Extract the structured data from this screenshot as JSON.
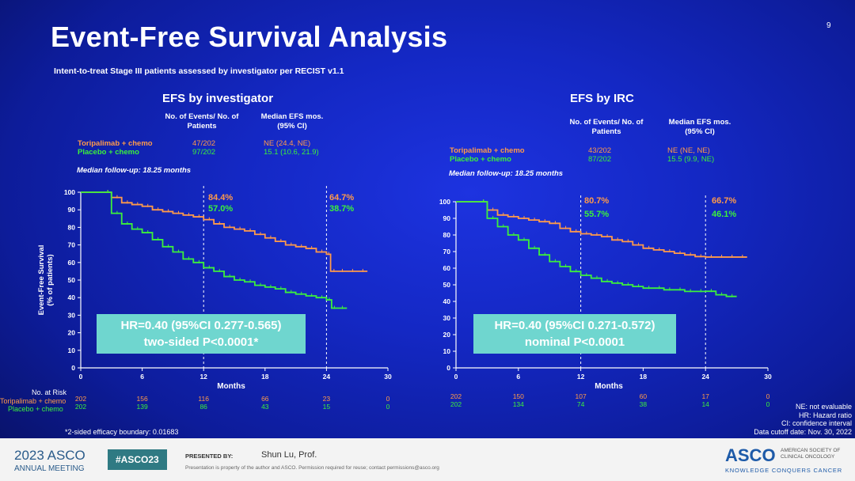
{
  "slide": {
    "title": "Event-Free Survival Analysis",
    "page_number": "9",
    "subtitle": "Intent-to-treat Stage III patients assessed by investigator per RECIST v1.1",
    "footnote_left": "*2-sided efficacy boundary: 0.01683",
    "notes_right": [
      "NE: not evaluable",
      "HR: Hazard ratio",
      "CI: confidence interval",
      "Data cutoff date: Nov. 30, 2022"
    ],
    "colors": {
      "background": "#1428c4",
      "toripalimab": "#ff9a4a",
      "placebo": "#3cf03c",
      "hr_box": "#6fd6cf"
    }
  },
  "footer": {
    "year_meeting": "2023 ASCO",
    "annual_meeting": "ANNUAL MEETING",
    "hashtag": "#ASCO23",
    "presented_by_label": "PRESENTED BY:",
    "presenter": "Shun Lu, Prof.",
    "disclaimer": "Presentation is property of the author and ASCO. Permission required for reuse; contact permissions@asco.org",
    "brand": "ASCO",
    "brand_sub1": "AMERICAN SOCIETY OF",
    "brand_sub2": "CLINICAL ONCOLOGY",
    "tagline": "KNOWLEDGE CONQUERS CANCER"
  },
  "risk_table_label": "No. at Risk",
  "chart_data": [
    {
      "type": "line",
      "title": "EFS by investigator",
      "xlabel": "Months",
      "ylabel_line1": "Event-Free Survival",
      "ylabel_line2": "(% of patients)",
      "xlim": [
        0,
        30
      ],
      "ylim": [
        0,
        100
      ],
      "xticks": [
        0,
        6,
        12,
        18,
        24,
        30
      ],
      "yticks": [
        0,
        10,
        20,
        30,
        40,
        50,
        60,
        70,
        80,
        90,
        100
      ],
      "reference_lines_x": [
        12,
        24
      ],
      "table_headers": {
        "events": "No. of Events/ No. of Patients",
        "median": "Median EFS mos. (95% CI)"
      },
      "series": [
        {
          "name": "Toripalimab + chemo",
          "color": "#ff9a4a",
          "events": "47/202",
          "median": "NE (24.4, NE)",
          "x": [
            0,
            2.2,
            3,
            4,
            5,
            6,
            7,
            8,
            9,
            10,
            11,
            12,
            13,
            14,
            15,
            16,
            17,
            18,
            19,
            20,
            21,
            22,
            23,
            24,
            24.4,
            25,
            26,
            27,
            28
          ],
          "y": [
            100,
            100,
            97,
            94,
            93,
            92,
            90,
            89,
            88,
            87,
            86,
            84.4,
            82,
            80,
            79,
            78,
            76,
            74,
            72,
            70,
            69,
            68,
            66,
            64.7,
            55,
            55,
            55,
            55,
            55
          ],
          "at_risk": [
            "202",
            "156",
            "116",
            "66",
            "23",
            "0"
          ],
          "landmarks": [
            "84.4%",
            "64.7%"
          ]
        },
        {
          "name": "Placebo + chemo",
          "color": "#3cf03c",
          "events": "97/202",
          "median": "15.1 (10.6, 21.9)",
          "x": [
            0,
            2.2,
            3,
            4,
            5,
            6,
            7,
            8,
            9,
            10,
            11,
            12,
            13,
            14,
            15,
            16,
            17,
            18,
            19,
            20,
            21,
            22,
            23,
            24,
            24.5,
            25,
            26
          ],
          "y": [
            100,
            100,
            88,
            82,
            79,
            77,
            73,
            69,
            66,
            62,
            60,
            57,
            55,
            52,
            50,
            49,
            47,
            46,
            45,
            43,
            42,
            41,
            40,
            38.7,
            34,
            34,
            34
          ],
          "at_risk": [
            "202",
            "139",
            "86",
            "43",
            "15",
            "0"
          ],
          "landmarks": [
            "57.0%",
            "38.7%"
          ]
        }
      ],
      "median_followup": "Median follow-up: 18.25 months",
      "hr_line1": "HR=0.40 (95%CI 0.277-0.565)",
      "hr_line2": "two-sided P<0.0001*"
    },
    {
      "type": "line",
      "title": "EFS by IRC",
      "xlabel": "Months",
      "xlim": [
        0,
        30
      ],
      "ylim": [
        0,
        100
      ],
      "xticks": [
        0,
        6,
        12,
        18,
        24,
        30
      ],
      "yticks": [
        0,
        10,
        20,
        30,
        40,
        50,
        60,
        70,
        80,
        90,
        100
      ],
      "reference_lines_x": [
        12,
        24
      ],
      "table_headers": {
        "events": "No. of Events/ No. of Patients",
        "median": "Median EFS mos. (95% CI)"
      },
      "series": [
        {
          "name": "Toripalimab + chemo",
          "color": "#ff9a4a",
          "events": "43/202",
          "median": "NE (NE, NE)",
          "x": [
            0,
            2.2,
            3,
            4,
            5,
            6,
            7,
            8,
            9,
            10,
            11,
            12,
            13,
            14,
            15,
            16,
            17,
            18,
            19,
            20,
            21,
            22,
            23,
            24,
            25,
            26,
            27,
            28
          ],
          "y": [
            100,
            100,
            95,
            92,
            91,
            90,
            89,
            88,
            87,
            84,
            82,
            80.7,
            80,
            79,
            77,
            76,
            74,
            72,
            71,
            70,
            69,
            68,
            67,
            66.7,
            66.7,
            66.7,
            66.7,
            66.7
          ],
          "at_risk": [
            "202",
            "150",
            "107",
            "60",
            "17",
            "0"
          ],
          "landmarks": [
            "80.7%",
            "66.7%"
          ]
        },
        {
          "name": "Placebo + chemo",
          "color": "#3cf03c",
          "events": "87/202",
          "median": "15.5 (9.9, NE)",
          "x": [
            0,
            2.2,
            3,
            4,
            5,
            6,
            7,
            8,
            9,
            10,
            11,
            12,
            13,
            14,
            15,
            16,
            17,
            18,
            19,
            20,
            21,
            22,
            23,
            24,
            25,
            26,
            27
          ],
          "y": [
            100,
            100,
            90,
            85,
            80,
            77,
            72,
            68,
            64,
            61,
            58,
            55.7,
            54,
            52,
            51,
            50,
            49,
            48,
            48,
            47,
            47,
            46,
            46,
            46.1,
            44,
            43,
            43
          ],
          "at_risk": [
            "202",
            "134",
            "74",
            "38",
            "14",
            "0"
          ],
          "landmarks": [
            "55.7%",
            "46.1%"
          ]
        }
      ],
      "median_followup": "Median follow-up: 18.25 months",
      "hr_line1": "HR=0.40 (95%CI 0.271-0.572)",
      "hr_line2": "nominal P<0.0001"
    }
  ]
}
